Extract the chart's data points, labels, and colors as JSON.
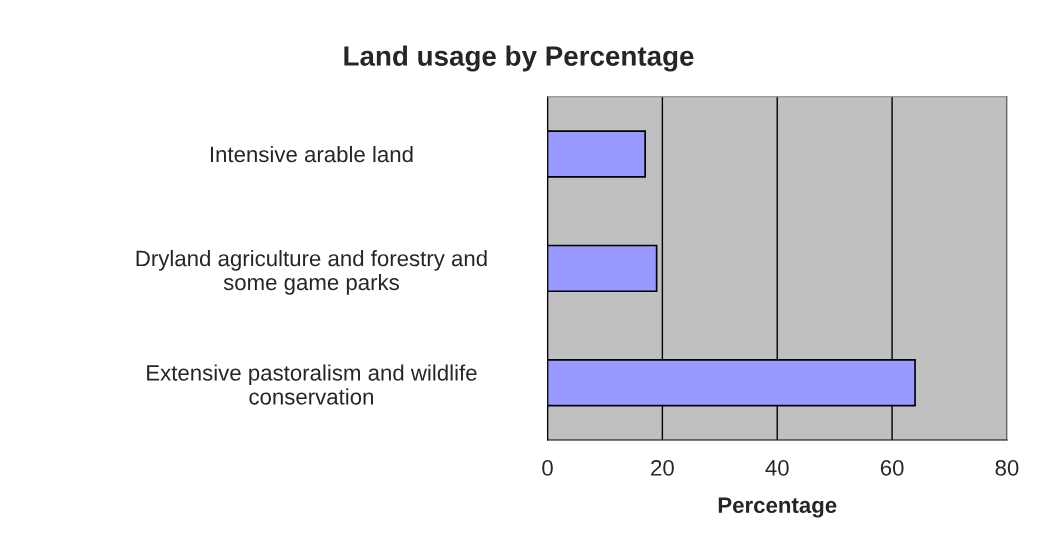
{
  "chart_data": {
    "type": "bar",
    "orientation": "horizontal",
    "title": "Land usage by Percentage",
    "xlabel": "Percentage",
    "categories": [
      "Intensive arable land",
      "Dryland agriculture and forestry and\nsome game parks",
      "Extensive pastoralism and wildlife\nconservation"
    ],
    "values": [
      17,
      19,
      64
    ],
    "color": "#9999ff",
    "xlim": [
      0,
      80
    ],
    "xticks": [
      0,
      20,
      40,
      60,
      80
    ],
    "grid": "x",
    "legend": false
  }
}
